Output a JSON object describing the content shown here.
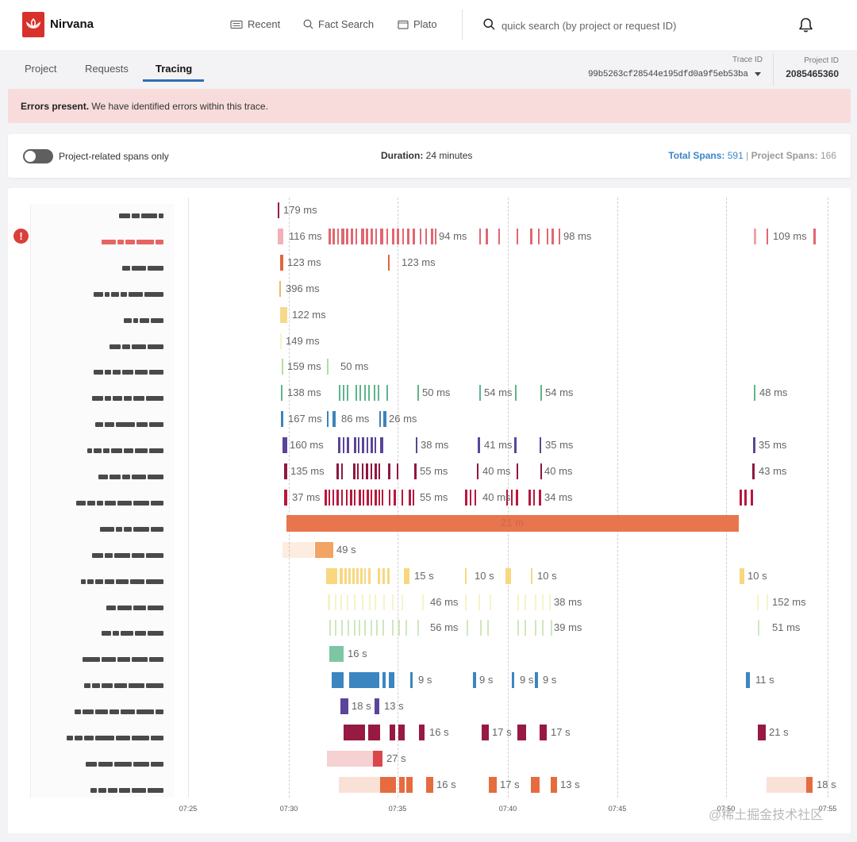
{
  "app": {
    "name": "Nirvana",
    "brand_color": "#d8312b"
  },
  "nav": {
    "recent": "Recent",
    "fact_search": "Fact Search",
    "plato": "Plato"
  },
  "search": {
    "placeholder": "quick search (by project or request ID)"
  },
  "tabs": [
    {
      "label": "Project"
    },
    {
      "label": "Requests"
    },
    {
      "label": "Tracing"
    }
  ],
  "active_tab": "Tracing",
  "trace": {
    "label": "Trace ID",
    "value": "99b5263cf28544e195dfd0a9f5eb53ba"
  },
  "project": {
    "label": "Project ID",
    "value": "2085465360"
  },
  "banner": {
    "title": "Errors present.",
    "message": "We have identified errors within this trace."
  },
  "controls": {
    "toggle_label": "Project-related spans only",
    "toggle_on": false,
    "duration_label": "Duration:",
    "duration_value": "24 minutes",
    "total_spans_label": "Total Spans:",
    "total_spans_value": "591",
    "separator": "|",
    "project_spans_label": "Project Spans:",
    "project_spans_value": "166"
  },
  "timeline": {
    "time_ticks": [
      "07:25",
      "07:30",
      "07:35",
      "07:40",
      "07:45",
      "07:50",
      "07:55"
    ],
    "main_bar_label": "21 m",
    "rows": [
      {
        "color": "#9a1c3e",
        "labels": [
          "179 ms"
        ]
      },
      {
        "color": "#e16670",
        "error": true,
        "labels": [
          "116 ms",
          "94 ms",
          "98 ms",
          "109 ms"
        ]
      },
      {
        "color": "#e0673d",
        "labels": [
          "123 ms",
          "123 ms"
        ]
      },
      {
        "color": "#f2b46c",
        "labels": [
          "396 ms"
        ]
      },
      {
        "color": "#f7d98a",
        "labels": [
          "122 ms"
        ]
      },
      {
        "color": "#f1eba2",
        "labels": [
          "149 ms"
        ]
      },
      {
        "color": "#b5dca0",
        "labels": [
          "159 ms",
          "50 ms"
        ]
      },
      {
        "color": "#5fb48c",
        "labels": [
          "138 ms",
          "50 ms",
          "54 ms",
          "54 ms",
          "48 ms"
        ]
      },
      {
        "color": "#3c84bb",
        "labels": [
          "167 ms",
          "86 ms",
          "26 ms"
        ]
      },
      {
        "color": "#5a4599",
        "labels": [
          "160 ms",
          "38 ms",
          "41 ms",
          "35 ms",
          "35 ms"
        ]
      },
      {
        "color": "#8e1840",
        "labels": [
          "135 ms",
          "55 ms",
          "40 ms",
          "40 ms",
          "43 ms"
        ]
      },
      {
        "color": "#b8173c",
        "labels": [
          "37 ms",
          "55 ms",
          "40 ms",
          "34 ms"
        ]
      },
      {
        "color": "#e8754d",
        "labels": []
      },
      {
        "color": "#f2a462",
        "labels": [
          "49 s"
        ]
      },
      {
        "color": "#f8d77f",
        "labels": [
          "15 s",
          "10 s",
          "10 s",
          "10 s"
        ]
      },
      {
        "color": "#eeeda4",
        "labels": [
          "46 ms",
          "38 ms",
          "152 ms"
        ]
      },
      {
        "color": "#b9dda1",
        "labels": [
          "56 ms",
          "39 ms",
          "51 ms"
        ]
      },
      {
        "color": "#7cc6a4",
        "labels": [
          "16 s"
        ]
      },
      {
        "color": "#3b86c0",
        "labels": [
          "9 s",
          "9 s",
          "9 s",
          "9 s",
          "11 s"
        ]
      },
      {
        "color": "#5a4599",
        "labels": [
          "18 s",
          "13 s"
        ]
      },
      {
        "color": "#961a42",
        "labels": [
          "16 s",
          "17 s",
          "17 s",
          "21 s"
        ]
      },
      {
        "color": "#d9474b",
        "labels": [
          "27 s"
        ]
      },
      {
        "color": "#e66b3e",
        "labels": [
          "16 s",
          "17 s",
          "13 s",
          "18 s"
        ]
      }
    ]
  },
  "watermark": "@稀土掘金技术社区"
}
